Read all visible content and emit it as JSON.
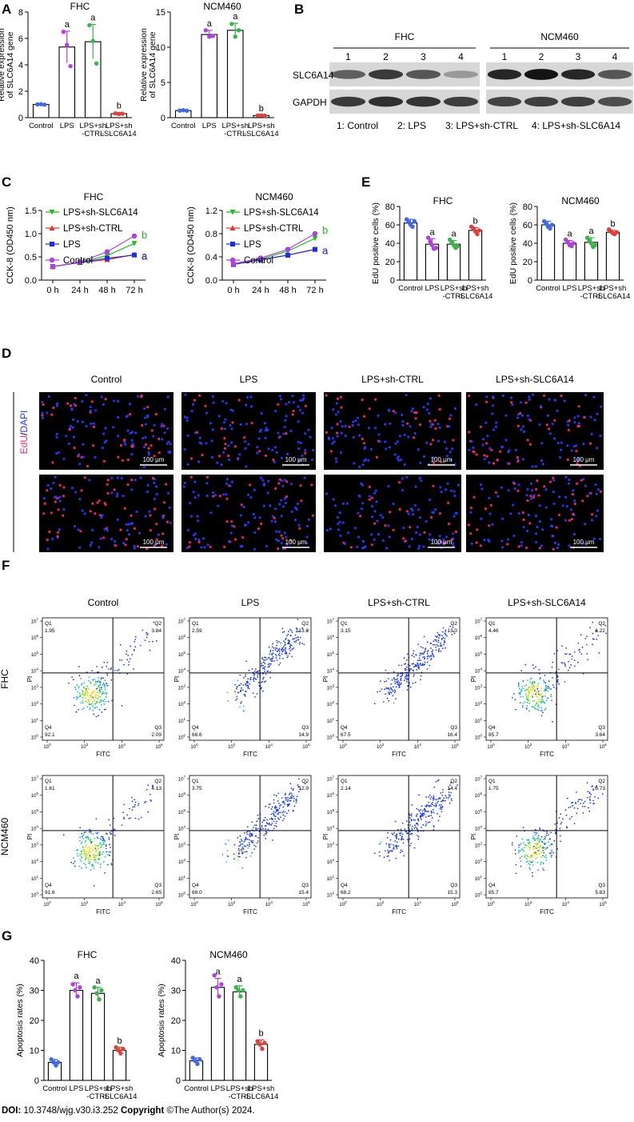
{
  "chart_data": [
    {
      "id": "A1",
      "panel": "A",
      "type": "bar",
      "title": "FHC",
      "ylabel": "Relative expression of SLC6A14 gene",
      "ylim": [
        0,
        8
      ],
      "yticks": [
        0,
        2,
        4,
        6,
        8
      ],
      "categories": [
        "Control",
        "LPS",
        "LPS+sh -CTRL",
        "LPS+sh -SLC6A14"
      ],
      "values": [
        1.0,
        5.35,
        5.75,
        0.3
      ],
      "errors": [
        0.03,
        1.2,
        1.3,
        0.08
      ],
      "points": [
        [
          1.0,
          1.02,
          0.98
        ],
        [
          6.5,
          5.5,
          3.9
        ],
        [
          7.0,
          5.8,
          4.1
        ],
        [
          0.32,
          0.28,
          0.3
        ]
      ],
      "sig": [
        "",
        "a",
        "a",
        "b"
      ],
      "colors": [
        "#4169e1",
        "#b040e0",
        "#3cb44b",
        "#e0403c"
      ]
    },
    {
      "id": "A2",
      "panel": "A",
      "type": "bar",
      "title": "NCM460",
      "ylabel": "Relative expression of SLC6A14 gene",
      "ylim": [
        0,
        15
      ],
      "yticks": [
        0,
        5,
        10,
        15
      ],
      "categories": [
        "Control",
        "LPS",
        "LPS+sh -CTRL",
        "LPS+sh -SLC6A14"
      ],
      "values": [
        1.0,
        11.8,
        12.4,
        0.3
      ],
      "errors": [
        0.05,
        0.6,
        1.0,
        0.05
      ],
      "points": [
        [
          1.0,
          1.05,
          0.98
        ],
        [
          12.4,
          11.5,
          11.6
        ],
        [
          13.3,
          11.5,
          12.4
        ],
        [
          0.3,
          0.32,
          0.28
        ]
      ],
      "sig": [
        "",
        "a",
        "a",
        "b"
      ],
      "colors": [
        "#4169e1",
        "#b040e0",
        "#3cb44b",
        "#e0403c"
      ]
    },
    {
      "id": "C1",
      "panel": "C",
      "type": "line",
      "title": "FHC",
      "ylabel": "CCK-8 (OD450 nm)",
      "ylim": [
        0,
        1.5
      ],
      "yticks": [
        "0.0",
        "0.5",
        "1.0",
        "1.5"
      ],
      "x": [
        "0 h",
        "24 h",
        "48 h",
        "72 h"
      ],
      "series": [
        {
          "name": "LPS+sh-SLC6A14",
          "color": "#22bb22",
          "marker": "tri-down",
          "values": [
            0.29,
            0.38,
            0.53,
            0.79
          ],
          "label": "b",
          "label_color": "#22bb22"
        },
        {
          "name": "LPS+sh-CTRL",
          "color": "#e8342c",
          "marker": "tri-up",
          "values": [
            0.29,
            0.38,
            0.44,
            0.55
          ],
          "label": "a",
          "label_color": "#e8342c"
        },
        {
          "name": "LPS",
          "color": "#1a2ee8",
          "marker": "square",
          "values": [
            0.29,
            0.38,
            0.47,
            0.54
          ],
          "label": "a",
          "label_color": "#1a2ee8"
        },
        {
          "name": "Control",
          "color": "#b040e0",
          "marker": "circle",
          "values": [
            0.29,
            0.39,
            0.61,
            0.95
          ],
          "label": "",
          "label_color": "#b040e0"
        }
      ]
    },
    {
      "id": "C2",
      "panel": "C",
      "type": "line",
      "title": "NCM460",
      "ylabel": "CCK-8 (OD450 nm)",
      "ylim": [
        0,
        1.2
      ],
      "yticks": [
        "0.0",
        "0.4",
        "0.8",
        "1.2"
      ],
      "x": [
        "0 h",
        "24 h",
        "48 h",
        "72 h"
      ],
      "series": [
        {
          "name": "LPS+sh-SLC6A14",
          "color": "#22bb22",
          "marker": "tri-down",
          "values": [
            0.27,
            0.36,
            0.5,
            0.72
          ],
          "label": "b",
          "label_color": "#22bb22"
        },
        {
          "name": "LPS+sh-CTRL",
          "color": "#e8342c",
          "marker": "tri-up",
          "values": [
            0.27,
            0.35,
            0.43,
            0.53
          ],
          "label": "a",
          "label_color": "#e8342c"
        },
        {
          "name": "LPS",
          "color": "#1a2ee8",
          "marker": "square",
          "values": [
            0.27,
            0.35,
            0.43,
            0.53
          ],
          "label": "a",
          "label_color": "#1a2ee8"
        },
        {
          "name": "Control",
          "color": "#b040e0",
          "marker": "circle",
          "values": [
            0.28,
            0.38,
            0.53,
            0.8
          ],
          "label": "",
          "label_color": "#b040e0"
        }
      ]
    },
    {
      "id": "E1",
      "panel": "E",
      "type": "bar",
      "title": "FHC",
      "ylabel": "EdU positive cells (%)",
      "ylim": [
        0,
        80
      ],
      "yticks": [
        0,
        20,
        40,
        60,
        80
      ],
      "categories": [
        "Control",
        "LPS",
        "LPS+sh -CTRL",
        "LPS+sh -SLC6A14"
      ],
      "values": [
        62,
        39,
        39,
        54
      ],
      "errors": [
        4,
        6,
        4,
        3
      ],
      "points": [
        [
          66,
          63,
          60,
          58,
          64
        ],
        [
          46,
          42,
          38,
          34,
          35
        ],
        [
          44,
          41,
          38,
          35,
          37
        ],
        [
          58,
          56,
          53,
          50,
          54
        ]
      ],
      "sig": [
        "",
        "a",
        "a",
        "b"
      ],
      "colors": [
        "#4169e1",
        "#b040e0",
        "#3cb44b",
        "#e0403c"
      ]
    },
    {
      "id": "E2",
      "panel": "E",
      "type": "bar",
      "title": "NCM460",
      "ylabel": "EdU positive cells (%)",
      "ylim": [
        0,
        80
      ],
      "yticks": [
        0,
        20,
        40,
        60,
        80
      ],
      "categories": [
        "Control",
        "LPS",
        "LPS+sh -CTRL",
        "LPS+sh -SLC6A14"
      ],
      "values": [
        60,
        40,
        41,
        52
      ],
      "errors": [
        4,
        3,
        5,
        2
      ],
      "points": [
        [
          64,
          61,
          58,
          56,
          60
        ],
        [
          44,
          41,
          38,
          37,
          40
        ],
        [
          46,
          43,
          40,
          36,
          38
        ],
        [
          55,
          53,
          51,
          50,
          52
        ]
      ],
      "sig": [
        "",
        "a",
        "a",
        "b"
      ],
      "colors": [
        "#4169e1",
        "#b040e0",
        "#3cb44b",
        "#e0403c"
      ]
    },
    {
      "id": "G1",
      "panel": "G",
      "type": "bar",
      "title": "FHC",
      "ylabel": "Apoptosis rates (%)",
      "ylim": [
        0,
        40
      ],
      "yticks": [
        0,
        10,
        20,
        30,
        40
      ],
      "categories": [
        "Control",
        "LPS",
        "LPS+sh -CTRL",
        "LPS+sh -SLC6A14"
      ],
      "values": [
        6,
        30,
        29,
        10
      ],
      "errors": [
        1,
        2.5,
        2,
        1
      ],
      "points": [
        [
          7,
          6,
          5,
          6
        ],
        [
          32,
          30,
          28,
          31
        ],
        [
          31,
          29,
          27,
          30
        ],
        [
          11,
          10,
          9,
          10.5
        ]
      ],
      "sig": [
        "",
        "a",
        "a",
        "b"
      ],
      "colors": [
        "#4169e1",
        "#b040e0",
        "#3cb44b",
        "#e0403c"
      ]
    },
    {
      "id": "G2",
      "panel": "G",
      "type": "bar",
      "title": "NCM460",
      "ylabel": "Apoptosis rates (%)",
      "ylim": [
        0,
        40
      ],
      "yticks": [
        0,
        10,
        20,
        30,
        40
      ],
      "categories": [
        "Control",
        "LPS",
        "LPS+sh -CTRL",
        "LPS+sh -SLC6A14"
      ],
      "values": [
        6.5,
        31,
        29.5,
        12
      ],
      "errors": [
        1,
        3,
        2,
        1.5
      ],
      "points": [
        [
          7.5,
          6.5,
          5.5,
          7
        ],
        [
          35,
          31,
          28,
          32
        ],
        [
          31,
          30,
          28,
          30
        ],
        [
          13,
          12,
          10.5,
          12.5
        ]
      ],
      "sig": [
        "",
        "a",
        "a",
        "b"
      ],
      "colors": [
        "#4169e1",
        "#b040e0",
        "#3cb44b",
        "#e0403c"
      ]
    }
  ],
  "panels": {
    "A": "A",
    "B": "B",
    "C": "C",
    "D": "D",
    "E": "E",
    "F": "F",
    "G": "G"
  },
  "western_blot": {
    "groups": [
      "FHC",
      "NCM460"
    ],
    "lanes": [
      "1",
      "2",
      "3",
      "4"
    ],
    "proteins": [
      "SLC6A14",
      "GAPDH"
    ],
    "legend": [
      "1: Control",
      "2: LPS",
      "3: LPS+sh-CTRL",
      "4: LPS+sh-SLC6A14"
    ],
    "band_intensity": {
      "FHC_SLC6A14": [
        0.55,
        0.75,
        0.6,
        0.25
      ],
      "FHC_GAPDH": [
        0.75,
        0.8,
        0.78,
        0.72
      ],
      "NCM460_SLC6A14": [
        0.85,
        0.95,
        0.85,
        0.6
      ],
      "NCM460_GAPDH": [
        0.7,
        0.72,
        0.72,
        0.65
      ]
    }
  },
  "edu_images": {
    "columns": [
      "Control",
      "LPS",
      "LPS+sh-CTRL",
      "LPS+sh-SLC6A14"
    ],
    "rows": [
      "FHC",
      "NCM460"
    ],
    "stain_label_red": "EdU",
    "stain_label_sep": "/",
    "stain_label_blue": "DAPI",
    "scale_bar": "100 μm",
    "red_fraction": [
      [
        0.35,
        0.2,
        0.22,
        0.3
      ],
      [
        0.4,
        0.25,
        0.2,
        0.3
      ]
    ],
    "colors": {
      "red": "#ff2a6a",
      "blue": "#2a3cff"
    }
  },
  "flow": {
    "columns": [
      "Control",
      "LPS",
      "LPS+sh-CTRL",
      "LPS+sh-SLC6A14"
    ],
    "rows": [
      "FHC",
      "NCM460"
    ],
    "xlabel": "FITC",
    "ylabel": "PI",
    "quadrant_names": [
      "Q1",
      "Q2",
      "Q3",
      "Q4"
    ],
    "values": [
      [
        [
          "1.95",
          "3.84",
          "2.09",
          "92.1"
        ],
        [
          "2.59",
          "13.9",
          "14.9",
          "68.6"
        ],
        [
          "3.15",
          "13.0",
          "16.4",
          "67.5"
        ],
        [
          "4.46",
          "6.22",
          "3.64",
          "85.7"
        ]
      ],
      [
        [
          "1.61",
          "4.13",
          "2.65",
          "91.6"
        ],
        [
          "3.75",
          "12.9",
          "15.4",
          "68.0"
        ],
        [
          "2.14",
          "14.4",
          "15.3",
          "68.2"
        ],
        [
          "1.75",
          "6.73",
          "5.83",
          "85.7"
        ]
      ]
    ],
    "tick_exps": [
      "0",
      "1",
      "2",
      "3",
      "4",
      "5",
      "6",
      "7"
    ],
    "xtick_exps": [
      "0",
      "2",
      "4",
      "6"
    ]
  },
  "footer": {
    "doi_label": "DOI:",
    "doi": "10.3748/wjg.v30.i3.252",
    "copyright_label": "Copyright",
    "copyright": "©The Author(s) 2024."
  }
}
